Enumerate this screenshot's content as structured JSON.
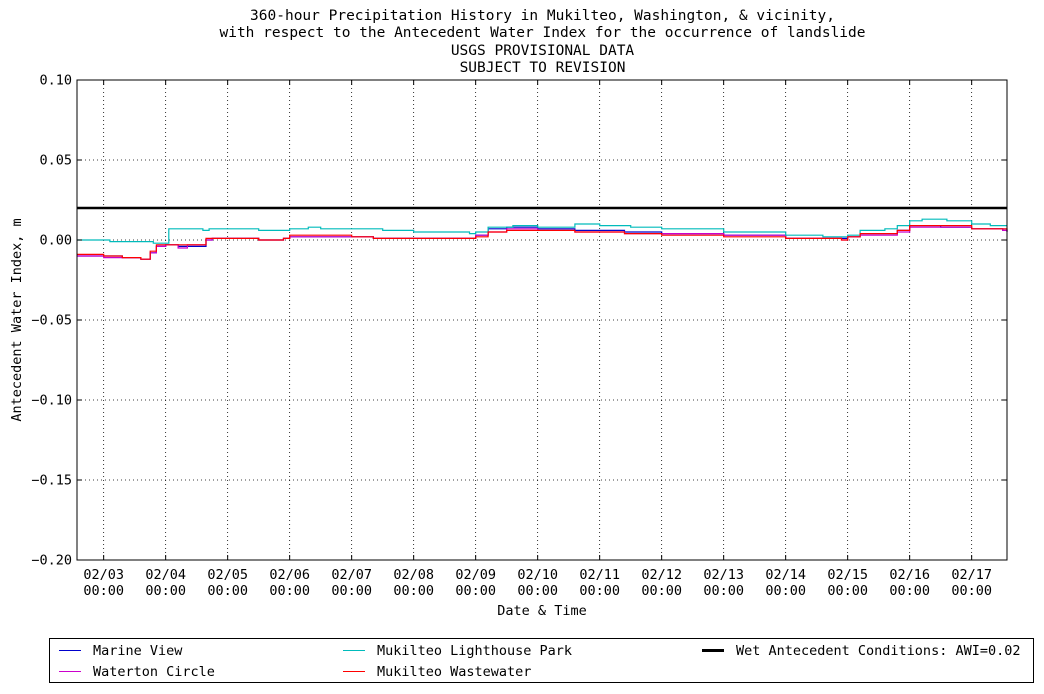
{
  "titles": [
    "360-hour Precipitation History in Mukilteo, Washington, & vicinity,",
    "with respect to the Antecedent Water Index for the occurrence of landslide",
    "USGS PROVISIONAL DATA",
    "SUBJECT TO REVISION"
  ],
  "chart_data": {
    "type": "line",
    "xlabel": "Date & Time",
    "ylabel": "Antecedent Water Index, m",
    "xlim_days": [
      2.57,
      17.57
    ],
    "ylim": [
      -0.2,
      0.1
    ],
    "yticks": [
      "0.10",
      "0.05",
      "0.00",
      "−0.05",
      "−0.10",
      "−0.15",
      "−0.20"
    ],
    "ytick_values": [
      0.1,
      0.05,
      0.0,
      -0.05,
      -0.1,
      -0.15,
      -0.2
    ],
    "xticks": [
      {
        "day": 3,
        "date": "02/03",
        "time": "00:00"
      },
      {
        "day": 4,
        "date": "02/04",
        "time": "00:00"
      },
      {
        "day": 5,
        "date": "02/05",
        "time": "00:00"
      },
      {
        "day": 6,
        "date": "02/06",
        "time": "00:00"
      },
      {
        "day": 7,
        "date": "02/07",
        "time": "00:00"
      },
      {
        "day": 8,
        "date": "02/08",
        "time": "00:00"
      },
      {
        "day": 9,
        "date": "02/09",
        "time": "00:00"
      },
      {
        "day": 10,
        "date": "02/10",
        "time": "00:00"
      },
      {
        "day": 11,
        "date": "02/11",
        "time": "00:00"
      },
      {
        "day": 12,
        "date": "02/12",
        "time": "00:00"
      },
      {
        "day": 13,
        "date": "02/13",
        "time": "00:00"
      },
      {
        "day": 14,
        "date": "02/14",
        "time": "00:00"
      },
      {
        "day": 15,
        "date": "02/15",
        "time": "00:00"
      },
      {
        "day": 16,
        "date": "02/16",
        "time": "00:00"
      },
      {
        "day": 17,
        "date": "02/17",
        "time": "00:00"
      }
    ],
    "grid": true,
    "legend_position": "bottom",
    "threshold": {
      "name": "Wet Antecedent Conditions: AWI=0.02",
      "value": 0.02,
      "color": "#000000"
    },
    "series": [
      {
        "name": "Marine View",
        "color": "#0000cc",
        "points": [
          [
            2.57,
            -0.01
          ],
          [
            3.0,
            -0.01
          ],
          [
            3.3,
            -0.011
          ],
          [
            3.6,
            -0.012
          ],
          [
            3.75,
            -0.008
          ],
          [
            3.85,
            -0.004
          ],
          [
            4.0,
            -0.003
          ],
          [
            4.2,
            -0.004
          ],
          [
            4.4,
            -0.004
          ],
          [
            4.55,
            -0.004
          ],
          [
            4.65,
            0.0
          ],
          [
            4.75,
            0.001
          ],
          [
            5.5,
            0.0
          ],
          [
            5.9,
            0.001
          ],
          [
            6.0,
            0.002
          ],
          [
            7.0,
            0.002
          ],
          [
            7.35,
            0.001
          ],
          [
            8.0,
            0.001
          ],
          [
            8.9,
            0.001
          ],
          [
            9.0,
            0.003
          ],
          [
            9.2,
            0.007
          ],
          [
            9.5,
            0.008
          ],
          [
            10.0,
            0.007
          ],
          [
            10.6,
            0.006
          ],
          [
            11.4,
            0.005
          ],
          [
            12.0,
            0.004
          ],
          [
            13.0,
            0.003
          ],
          [
            14.0,
            0.001
          ],
          [
            14.9,
            0.001
          ],
          [
            15.0,
            0.002
          ],
          [
            15.2,
            0.004
          ],
          [
            15.5,
            0.004
          ],
          [
            15.8,
            0.006
          ],
          [
            16.0,
            0.009
          ],
          [
            16.5,
            0.008
          ],
          [
            17.0,
            0.007
          ],
          [
            17.5,
            0.006
          ],
          [
            17.57,
            0.005
          ]
        ]
      },
      {
        "name": "Waterton Circle",
        "color": "#cc00cc",
        "points": [
          [
            2.57,
            -0.01
          ],
          [
            3.0,
            -0.011
          ],
          [
            3.3,
            -0.011
          ],
          [
            3.6,
            -0.012
          ],
          [
            3.75,
            -0.008
          ],
          [
            3.85,
            -0.004
          ],
          [
            4.0,
            -0.003
          ],
          [
            4.2,
            -0.005
          ],
          [
            4.35,
            -0.003
          ],
          [
            4.55,
            -0.003
          ],
          [
            4.65,
            0.0
          ],
          [
            4.75,
            0.001
          ],
          [
            5.5,
            0.0
          ],
          [
            5.9,
            0.001
          ],
          [
            6.0,
            0.002
          ],
          [
            7.0,
            0.002
          ],
          [
            7.35,
            0.001
          ],
          [
            8.0,
            0.001
          ],
          [
            8.9,
            0.001
          ],
          [
            9.0,
            0.003
          ],
          [
            9.2,
            0.005
          ],
          [
            9.5,
            0.007
          ],
          [
            10.0,
            0.006
          ],
          [
            10.6,
            0.005
          ],
          [
            11.4,
            0.004
          ],
          [
            12.0,
            0.004
          ],
          [
            13.0,
            0.003
          ],
          [
            14.0,
            0.001
          ],
          [
            14.9,
            0.0
          ],
          [
            15.0,
            0.002
          ],
          [
            15.2,
            0.003
          ],
          [
            15.5,
            0.003
          ],
          [
            15.8,
            0.005
          ],
          [
            16.0,
            0.008
          ],
          [
            16.5,
            0.008
          ],
          [
            17.0,
            0.007
          ],
          [
            17.5,
            0.006
          ],
          [
            17.57,
            0.005
          ]
        ]
      },
      {
        "name": "Mukilteo Lighthouse Park",
        "color": "#00bbbb",
        "points": [
          [
            2.57,
            0.0
          ],
          [
            3.0,
            0.0
          ],
          [
            3.1,
            -0.001
          ],
          [
            3.5,
            -0.001
          ],
          [
            3.8,
            -0.002
          ],
          [
            4.0,
            -0.002
          ],
          [
            4.05,
            0.007
          ],
          [
            4.6,
            0.006
          ],
          [
            4.7,
            0.007
          ],
          [
            5.2,
            0.007
          ],
          [
            5.5,
            0.006
          ],
          [
            5.9,
            0.006
          ],
          [
            6.0,
            0.007
          ],
          [
            6.3,
            0.008
          ],
          [
            6.5,
            0.007
          ],
          [
            7.0,
            0.007
          ],
          [
            7.5,
            0.006
          ],
          [
            8.0,
            0.005
          ],
          [
            8.9,
            0.004
          ],
          [
            9.0,
            0.005
          ],
          [
            9.2,
            0.008
          ],
          [
            9.6,
            0.009
          ],
          [
            10.0,
            0.008
          ],
          [
            10.55,
            0.008
          ],
          [
            10.6,
            0.01
          ],
          [
            11.0,
            0.009
          ],
          [
            11.5,
            0.008
          ],
          [
            12.0,
            0.007
          ],
          [
            13.0,
            0.005
          ],
          [
            14.0,
            0.003
          ],
          [
            14.6,
            0.002
          ],
          [
            15.0,
            0.003
          ],
          [
            15.2,
            0.006
          ],
          [
            15.6,
            0.007
          ],
          [
            15.8,
            0.009
          ],
          [
            16.0,
            0.012
          ],
          [
            16.2,
            0.013
          ],
          [
            16.6,
            0.012
          ],
          [
            17.0,
            0.01
          ],
          [
            17.3,
            0.009
          ],
          [
            17.57,
            0.009
          ]
        ]
      },
      {
        "name": "Mukilteo Wastewater",
        "color": "#ff0000",
        "points": [
          [
            2.57,
            -0.009
          ],
          [
            3.0,
            -0.01
          ],
          [
            3.3,
            -0.011
          ],
          [
            3.6,
            -0.012
          ],
          [
            3.75,
            -0.007
          ],
          [
            3.85,
            -0.003
          ],
          [
            4.0,
            -0.003
          ],
          [
            4.3,
            -0.003
          ],
          [
            4.55,
            -0.003
          ],
          [
            4.65,
            0.001
          ],
          [
            4.75,
            0.001
          ],
          [
            5.5,
            0.0
          ],
          [
            5.9,
            0.001
          ],
          [
            6.0,
            0.003
          ],
          [
            7.0,
            0.002
          ],
          [
            7.35,
            0.001
          ],
          [
            8.0,
            0.001
          ],
          [
            8.9,
            0.001
          ],
          [
            9.0,
            0.002
          ],
          [
            9.2,
            0.005
          ],
          [
            9.5,
            0.006
          ],
          [
            10.0,
            0.006
          ],
          [
            10.6,
            0.005
          ],
          [
            11.4,
            0.004
          ],
          [
            12.0,
            0.003
          ],
          [
            13.0,
            0.002
          ],
          [
            14.0,
            0.001
          ],
          [
            14.9,
            0.0
          ],
          [
            15.0,
            0.002
          ],
          [
            15.2,
            0.004
          ],
          [
            15.5,
            0.004
          ],
          [
            15.8,
            0.006
          ],
          [
            16.0,
            0.009
          ],
          [
            16.5,
            0.009
          ],
          [
            17.0,
            0.007
          ],
          [
            17.5,
            0.007
          ],
          [
            17.57,
            0.006
          ]
        ]
      }
    ]
  },
  "legend": {
    "items": [
      {
        "label": "Marine View",
        "color": "#0000cc",
        "style": "thin"
      },
      {
        "label": "Waterton Circle",
        "color": "#cc00cc",
        "style": "thin"
      },
      {
        "label": "Mukilteo Lighthouse Park",
        "color": "#00bbbb",
        "style": "thin"
      },
      {
        "label": "Mukilteo Wastewater",
        "color": "#ff0000",
        "style": "thin"
      },
      {
        "label": "Wet Antecedent Conditions: AWI=0.02",
        "color": "#000000",
        "style": "thick"
      }
    ]
  }
}
